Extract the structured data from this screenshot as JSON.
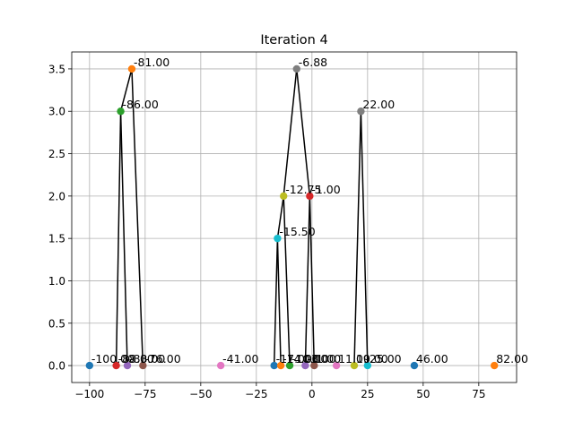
{
  "chart_data": {
    "type": "scatter",
    "title": "Iteration 4",
    "xlabel": "",
    "ylabel": "",
    "xlim": [
      -108,
      92
    ],
    "ylim": [
      -0.2,
      3.7
    ],
    "xticks": [
      -100,
      -75,
      -50,
      -25,
      0,
      25,
      50,
      75
    ],
    "xtick_labels": [
      "−100",
      "−75",
      "−50",
      "−25",
      "0",
      "25",
      "50",
      "75"
    ],
    "yticks": [
      0.0,
      0.5,
      1.0,
      1.5,
      2.0,
      2.5,
      3.0,
      3.5
    ],
    "ytick_labels": [
      "0.0",
      "0.5",
      "1.0",
      "1.5",
      "2.0",
      "2.5",
      "3.0",
      "3.5"
    ],
    "grid": true,
    "points": [
      {
        "id": "p1",
        "x": -100,
        "y": 0,
        "label": "-100.00",
        "color": "#1f77b4"
      },
      {
        "id": "p2",
        "x": -88,
        "y": 0,
        "label": "-88.00",
        "color": "#d62728"
      },
      {
        "id": "p3",
        "x": -83,
        "y": 0,
        "label": "-83.00",
        "color": "#9467bd"
      },
      {
        "id": "p4",
        "x": -76,
        "y": 0,
        "label": "-76.00",
        "color": "#8c564b"
      },
      {
        "id": "p5",
        "x": -86,
        "y": 3,
        "label": "-86.00",
        "color": "#2ca02c"
      },
      {
        "id": "p6",
        "x": -81,
        "y": 3.5,
        "label": "-81.00",
        "color": "#ff7f0e"
      },
      {
        "id": "p7",
        "x": -41,
        "y": 0,
        "label": "-41.00",
        "color": "#e377c2"
      },
      {
        "id": "p8",
        "x": -17,
        "y": 0,
        "label": "-17.00",
        "color": "#1f77b4"
      },
      {
        "id": "p9",
        "x": -14,
        "y": 0,
        "label": "-14.00",
        "color": "#ff7f0e"
      },
      {
        "id": "p10",
        "x": -10,
        "y": 0,
        "label": "-10.00",
        "color": "#2ca02c"
      },
      {
        "id": "p11",
        "x": -3,
        "y": 0,
        "label": "-3.00",
        "color": "#9467bd"
      },
      {
        "id": "p12",
        "x": 1,
        "y": 0,
        "label": "1.00",
        "color": "#8c564b"
      },
      {
        "id": "p13",
        "x": 11,
        "y": 0,
        "label": "11.00",
        "color": "#e377c2"
      },
      {
        "id": "p14",
        "x": 19,
        "y": 0,
        "label": "19.00",
        "color": "#bcbd22"
      },
      {
        "id": "p15",
        "x": 25,
        "y": 0,
        "label": "25.00",
        "color": "#17becf"
      },
      {
        "id": "p16",
        "x": 46,
        "y": 0,
        "label": "46.00",
        "color": "#1f77b4"
      },
      {
        "id": "p17",
        "x": 82,
        "y": 0,
        "label": "82.00",
        "color": "#ff7f0e"
      },
      {
        "id": "p18",
        "x": -15.5,
        "y": 1.5,
        "label": "-15.50",
        "color": "#17becf"
      },
      {
        "id": "p19",
        "x": -12.75,
        "y": 2,
        "label": "-12.75",
        "color": "#bcbd22"
      },
      {
        "id": "p20",
        "x": -1,
        "y": 2,
        "label": "-1.00",
        "color": "#d62728"
      },
      {
        "id": "p21",
        "x": -6.88,
        "y": 3.5,
        "label": "-6.88",
        "color": "#7f7f7f"
      },
      {
        "id": "p22",
        "x": 22,
        "y": 3,
        "label": "22.00",
        "color": "#7f7f7f"
      }
    ],
    "edges": [
      [
        "p2",
        "p5"
      ],
      [
        "p3",
        "p5"
      ],
      [
        "p5",
        "p6"
      ],
      [
        "p4",
        "p6"
      ],
      [
        "p8",
        "p18"
      ],
      [
        "p9",
        "p18"
      ],
      [
        "p18",
        "p19"
      ],
      [
        "p10",
        "p19"
      ],
      [
        "p11",
        "p20"
      ],
      [
        "p12",
        "p20"
      ],
      [
        "p19",
        "p21"
      ],
      [
        "p20",
        "p21"
      ],
      [
        "p14",
        "p22"
      ],
      [
        "p15",
        "p22"
      ]
    ]
  }
}
